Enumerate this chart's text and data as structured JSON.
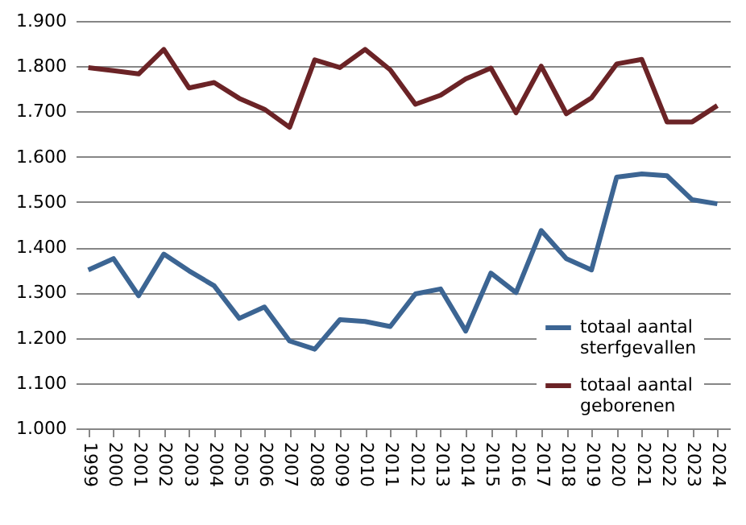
{
  "chart_data": {
    "type": "line",
    "categories": [
      "1999",
      "2000",
      "2001",
      "2002",
      "2003",
      "2004",
      "2005",
      "2006",
      "2007",
      "2008",
      "2009",
      "2010",
      "2011",
      "2012",
      "2013",
      "2014",
      "2015",
      "2016",
      "2017",
      "2018",
      "2019",
      "2020",
      "2021",
      "2022",
      "2023",
      "2024"
    ],
    "series": [
      {
        "name": "totaal aantal sterfgevallen",
        "color": "#3c6593",
        "values": [
          1350,
          1375,
          1293,
          1385,
          1348,
          1315,
          1243,
          1268,
          1193,
          1175,
          1240,
          1236,
          1225,
          1297,
          1308,
          1215,
          1343,
          1300,
          1437,
          1375,
          1350,
          1555,
          1562,
          1558,
          1505,
          1496
        ]
      },
      {
        "name": "totaal aantal geborenen",
        "color": "#6b2326",
        "values": [
          1797,
          1790,
          1783,
          1837,
          1752,
          1764,
          1729,
          1705,
          1665,
          1814,
          1797,
          1837,
          1792,
          1716,
          1736,
          1772,
          1796,
          1697,
          1800,
          1695,
          1730,
          1805,
          1815,
          1677,
          1677,
          1713
        ]
      }
    ],
    "ylim": [
      1000,
      1900
    ],
    "yticks": [
      {
        "value": 1000,
        "label": "1.000"
      },
      {
        "value": 1100,
        "label": "1.100"
      },
      {
        "value": 1200,
        "label": "1.200"
      },
      {
        "value": 1300,
        "label": "1.300"
      },
      {
        "value": 1400,
        "label": "1.400"
      },
      {
        "value": 1500,
        "label": "1.500"
      },
      {
        "value": 1600,
        "label": "1.600"
      },
      {
        "value": 1700,
        "label": "1.700"
      },
      {
        "value": 1800,
        "label": "1.800"
      },
      {
        "value": 1900,
        "label": "1.900"
      }
    ],
    "grid": "y",
    "legend": "bottom right",
    "marker": "none",
    "line_style": "solid"
  }
}
